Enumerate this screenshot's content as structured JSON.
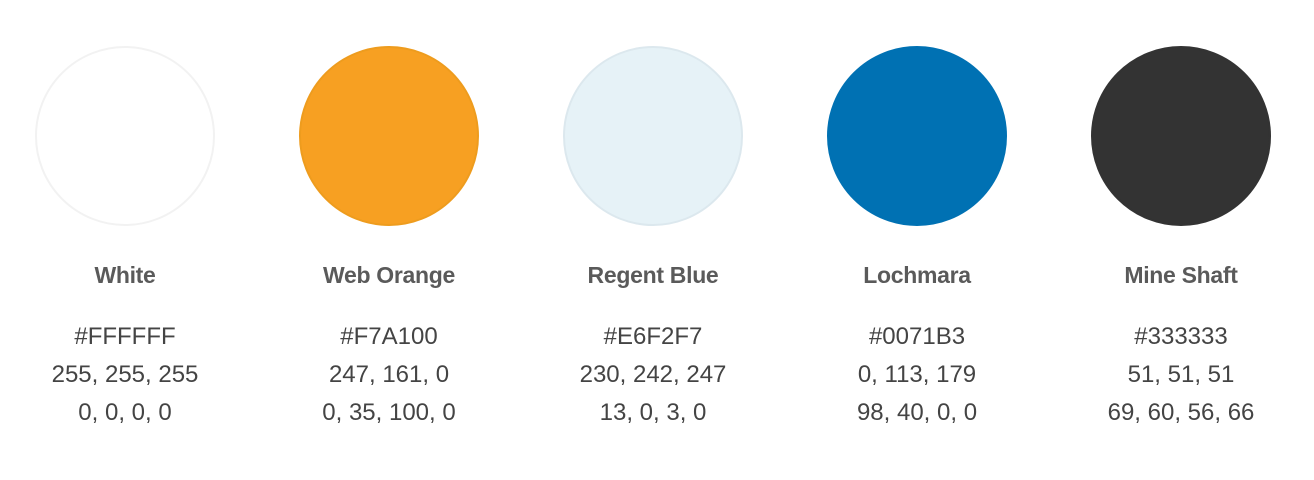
{
  "swatches": [
    {
      "name": "White",
      "hex": "#FFFFFF",
      "rgb": "255, 255, 255",
      "cmyk": "0, 0, 0, 0",
      "fill": "#FFFFFF",
      "border": "#F2F2F2"
    },
    {
      "name": "Web Orange",
      "hex": "#F7A100",
      "rgb": "247, 161, 0",
      "cmyk": "0, 35, 100, 0",
      "fill": "#F7A022",
      "border": "#EE9C1E"
    },
    {
      "name": "Regent Blue",
      "hex": "#E6F2F7",
      "rgb": "230, 242, 247",
      "cmyk": "13, 0, 3, 0",
      "fill": "#E6F2F7",
      "border": "#DCE8EE"
    },
    {
      "name": "Lochmara",
      "hex": "#0071B3",
      "rgb": "0, 113, 179",
      "cmyk": "98, 40, 0, 0",
      "fill": "#0071B3",
      "border": "#0071B3"
    },
    {
      "name": "Mine Shaft",
      "hex": "#333333",
      "rgb": "51, 51, 51",
      "cmyk": "69, 60, 56, 66",
      "fill": "#333333",
      "border": "#333333"
    }
  ]
}
